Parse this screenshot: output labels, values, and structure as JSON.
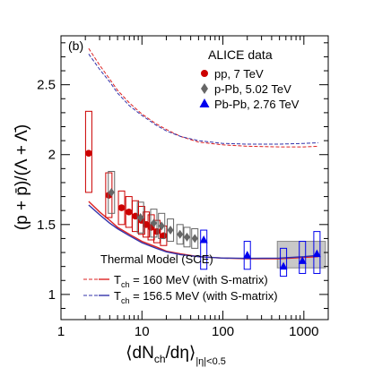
{
  "panel_label": "(b)",
  "legend_title": "ALICE data",
  "model_title": "Thermal Model (SCE)",
  "chart_data": {
    "type": "scatter",
    "xlabel": {
      "main": "⟨dN",
      "sub1": "ch",
      "mid": "/dη⟩",
      "sub2": "|η|<0.5"
    },
    "ylabel": "(p + p̄)/(Λ + Λ̄)",
    "xscale": "log",
    "xlim": [
      1,
      2000
    ],
    "ylim": [
      0.82,
      2.85
    ],
    "x_ticks": [
      {
        "v": 1,
        "label": "1"
      },
      {
        "v": 10,
        "label": "10"
      },
      {
        "v": 100,
        "label": "100"
      },
      {
        "v": 1000,
        "label": "1000"
      }
    ],
    "y_ticks": [
      {
        "v": 1,
        "label": "1"
      },
      {
        "v": 1.5,
        "label": "1.5"
      },
      {
        "v": 2,
        "label": "2"
      },
      {
        "v": 2.5,
        "label": "2.5"
      }
    ],
    "legend_position": "top-right",
    "series": [
      {
        "name": "pp, 7 TeV",
        "marker": "circle",
        "color": "#cc0000",
        "points": [
          {
            "x": 2.2,
            "y": 2.01,
            "lo": 1.73,
            "hi": 2.31
          },
          {
            "x": 3.9,
            "y": 1.71,
            "lo": 1.55,
            "hi": 1.87
          },
          {
            "x": 5.6,
            "y": 1.62,
            "lo": 1.5,
            "hi": 1.74
          },
          {
            "x": 6.9,
            "y": 1.59,
            "lo": 1.48,
            "hi": 1.7
          },
          {
            "x": 8.3,
            "y": 1.56,
            "lo": 1.45,
            "hi": 1.67
          },
          {
            "x": 9.9,
            "y": 1.53,
            "lo": 1.43,
            "hi": 1.63
          },
          {
            "x": 11.3,
            "y": 1.5,
            "lo": 1.41,
            "hi": 1.59
          },
          {
            "x": 13.0,
            "y": 1.48,
            "lo": 1.39,
            "hi": 1.57
          },
          {
            "x": 15.3,
            "y": 1.45,
            "lo": 1.37,
            "hi": 1.53
          },
          {
            "x": 18.5,
            "y": 1.42,
            "lo": 1.35,
            "hi": 1.49
          }
        ]
      },
      {
        "name": "p-Pb, 5.02 TeV",
        "marker": "diamond",
        "color": "#666666",
        "points": [
          {
            "x": 4.2,
            "y": 1.73,
            "lo": 1.58,
            "hi": 1.88
          },
          {
            "x": 9.6,
            "y": 1.55,
            "lo": 1.44,
            "hi": 1.66
          },
          {
            "x": 14.0,
            "y": 1.51,
            "lo": 1.41,
            "hi": 1.61
          },
          {
            "x": 17.5,
            "y": 1.49,
            "lo": 1.4,
            "hi": 1.58
          },
          {
            "x": 22.5,
            "y": 1.46,
            "lo": 1.38,
            "hi": 1.54
          },
          {
            "x": 29.5,
            "y": 1.43,
            "lo": 1.36,
            "hi": 1.5
          },
          {
            "x": 36.0,
            "y": 1.41,
            "lo": 1.34,
            "hi": 1.48
          },
          {
            "x": 45.0,
            "y": 1.4,
            "lo": 1.33,
            "hi": 1.47
          }
        ]
      },
      {
        "name": "Pb-Pb, 2.76 TeV",
        "marker": "triangle",
        "color": "#0000ee",
        "points": [
          {
            "x": 58,
            "y": 1.39,
            "lo": 1.18,
            "hi": 1.46
          },
          {
            "x": 200,
            "y": 1.28,
            "lo": 1.18,
            "hi": 1.38
          },
          {
            "x": 560,
            "y": 1.2,
            "lo": 1.13,
            "hi": 1.33
          },
          {
            "x": 960,
            "y": 1.24,
            "lo": 1.15,
            "hi": 1.38
          },
          {
            "x": 1450,
            "y": 1.29,
            "lo": 1.15,
            "hi": 1.45
          }
        ]
      }
    ],
    "band": {
      "x": [
        470,
        1850
      ],
      "y": [
        1.19,
        1.38
      ]
    },
    "model_curves": [
      {
        "name": "T",
        "subscript": "ch",
        "suffix": " = 160  MeV (with S-matrix)",
        "color": "#dd2222",
        "lower": [
          [
            2.2,
            1.665
          ],
          [
            3,
            1.59
          ],
          [
            4,
            1.53
          ],
          [
            5,
            1.48
          ],
          [
            7,
            1.43
          ],
          [
            10,
            1.38
          ],
          [
            15,
            1.34
          ],
          [
            20,
            1.31
          ],
          [
            30,
            1.29
          ],
          [
            50,
            1.27
          ],
          [
            100,
            1.26
          ],
          [
            200,
            1.255
          ],
          [
            500,
            1.255
          ],
          [
            1000,
            1.265
          ],
          [
            1500,
            1.27
          ]
        ],
        "upper": [
          [
            2.2,
            2.76
          ],
          [
            3,
            2.64
          ],
          [
            4,
            2.54
          ],
          [
            5,
            2.46
          ],
          [
            7,
            2.37
          ],
          [
            10,
            2.29
          ],
          [
            15,
            2.22
          ],
          [
            20,
            2.18
          ],
          [
            30,
            2.13
          ],
          [
            50,
            2.09
          ],
          [
            100,
            2.07
          ],
          [
            200,
            2.06
          ],
          [
            500,
            2.055
          ],
          [
            1000,
            2.055
          ],
          [
            1500,
            2.06
          ]
        ]
      },
      {
        "name": "T",
        "subscript": "ch",
        "suffix": " = 156.5 MeV (with S-matrix)",
        "color": "#3333aa",
        "lower": [
          [
            2.2,
            1.64
          ],
          [
            3,
            1.57
          ],
          [
            4,
            1.51
          ],
          [
            5,
            1.47
          ],
          [
            7,
            1.42
          ],
          [
            10,
            1.37
          ],
          [
            15,
            1.33
          ],
          [
            20,
            1.305
          ],
          [
            30,
            1.285
          ],
          [
            50,
            1.27
          ],
          [
            100,
            1.26
          ],
          [
            200,
            1.258
          ],
          [
            500,
            1.26
          ],
          [
            1000,
            1.27
          ],
          [
            1500,
            1.28
          ]
        ],
        "upper": [
          [
            2.2,
            2.72
          ],
          [
            3,
            2.61
          ],
          [
            4,
            2.52
          ],
          [
            5,
            2.44
          ],
          [
            7,
            2.35
          ],
          [
            10,
            2.28
          ],
          [
            15,
            2.21
          ],
          [
            20,
            2.17
          ],
          [
            30,
            2.13
          ],
          [
            50,
            2.1
          ],
          [
            100,
            2.08
          ],
          [
            200,
            2.075
          ],
          [
            500,
            2.075
          ],
          [
            1000,
            2.08
          ],
          [
            1500,
            2.085
          ]
        ]
      }
    ]
  }
}
